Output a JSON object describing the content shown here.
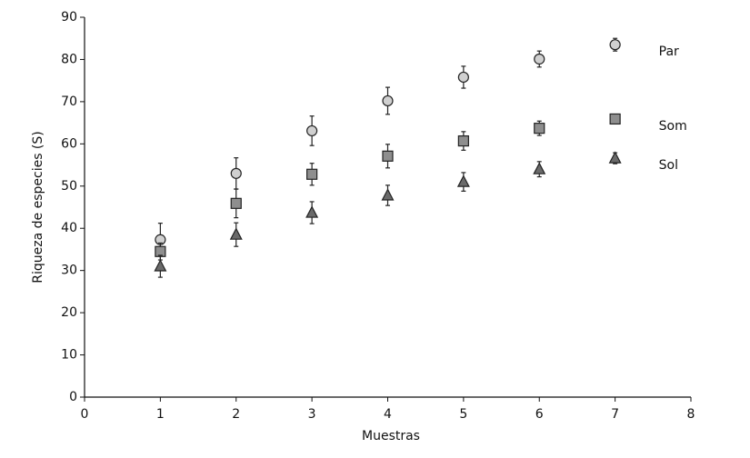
{
  "chart_data": {
    "type": "scatter",
    "x_label": "Muestras",
    "y_label": "Riqueza de especies (S)",
    "xlim": [
      0,
      8
    ],
    "xticks": [
      0,
      1,
      2,
      3,
      4,
      5,
      6,
      7,
      8
    ],
    "ylim": [
      0,
      90
    ],
    "yticks": [
      0,
      10,
      20,
      30,
      40,
      50,
      60,
      70,
      80,
      90
    ],
    "grid": false,
    "x": [
      1,
      2,
      3,
      4,
      5,
      6,
      7
    ],
    "series": [
      {
        "name": "Par",
        "color": "#d0d0d0",
        "marker": "circle",
        "values": [
          37.3,
          53.0,
          63.1,
          70.2,
          75.8,
          80.1,
          83.5
        ],
        "errors": [
          3.9,
          3.7,
          3.5,
          3.2,
          2.6,
          1.9,
          1.5
        ]
      },
      {
        "name": "Som",
        "color": "#8e8e8e",
        "marker": "square",
        "values": [
          34.5,
          45.9,
          52.8,
          57.1,
          60.7,
          63.7,
          65.9
        ],
        "errors": [
          2.0,
          3.4,
          2.6,
          2.8,
          2.2,
          1.7,
          1.1
        ]
      },
      {
        "name": "Sol",
        "color": "#6a6a6a",
        "marker": "triangle",
        "values": [
          31.0,
          38.5,
          43.7,
          47.8,
          51.0,
          54.0,
          56.6
        ],
        "errors": [
          2.6,
          2.8,
          2.6,
          2.4,
          2.2,
          1.8,
          1.3
        ]
      }
    ]
  }
}
